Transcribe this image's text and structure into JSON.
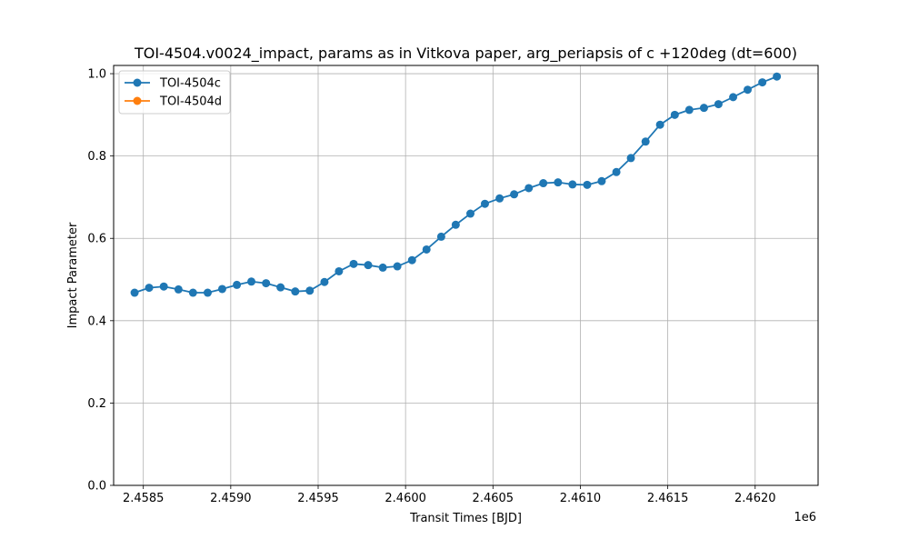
{
  "chart_data": {
    "type": "line",
    "title": "TOI-4504.v0024_impact, params as in Vitkova paper, arg_periapsis of c +120deg (dt=600)",
    "xlabel": "Transit Times [BJD]",
    "ylabel": "Impact Parameter",
    "x_offset_label": "1e6",
    "xlim": [
      2458330,
      2462360
    ],
    "ylim": [
      0.0,
      1.02
    ],
    "x_ticks": [
      2.4585,
      2.459,
      2.4595,
      2.46,
      2.4605,
      2.461,
      2.4615,
      2.462
    ],
    "x_tick_labels": [
      "2.4585",
      "2.4590",
      "2.4595",
      "2.4600",
      "2.4605",
      "2.4610",
      "2.4615",
      "2.4620"
    ],
    "y_ticks": [
      0.0,
      0.2,
      0.4,
      0.6,
      0.8,
      1.0
    ],
    "y_tick_labels": [
      "0.0",
      "0.2",
      "0.4",
      "0.6",
      "0.8",
      "1.0"
    ],
    "grid": true,
    "legend_position": "top-left",
    "series": [
      {
        "name": "TOI-4504c",
        "color": "#1f77b4",
        "x": [
          2458450,
          2458533,
          2458617,
          2458701,
          2458784,
          2458868,
          2458951,
          2459035,
          2459118,
          2459202,
          2459285,
          2459369,
          2459452,
          2459536,
          2459619,
          2459703,
          2459786,
          2459870,
          2459953,
          2460037,
          2460120,
          2460204,
          2460287,
          2460371,
          2460454,
          2460538,
          2460621,
          2460705,
          2460788,
          2460872,
          2460955,
          2461039,
          2461122,
          2461206,
          2461289,
          2461373,
          2461456,
          2461540,
          2461623,
          2461707,
          2461790,
          2461874,
          2461957,
          2462041,
          2462124
        ],
        "y": [
          0.468,
          0.48,
          0.483,
          0.476,
          0.468,
          0.468,
          0.477,
          0.487,
          0.495,
          0.491,
          0.481,
          0.471,
          0.473,
          0.494,
          0.52,
          0.538,
          0.535,
          0.529,
          0.532,
          0.547,
          0.573,
          0.604,
          0.633,
          0.66,
          0.684,
          0.697,
          0.707,
          0.722,
          0.734,
          0.736,
          0.731,
          0.73,
          0.739,
          0.761,
          0.795,
          0.835,
          0.876,
          0.9,
          0.912,
          0.917,
          0.926,
          0.943,
          0.961,
          0.979,
          0.993
        ]
      },
      {
        "name": "TOI-4504d",
        "color": "#ff7f0e",
        "x": [],
        "y": []
      }
    ]
  }
}
